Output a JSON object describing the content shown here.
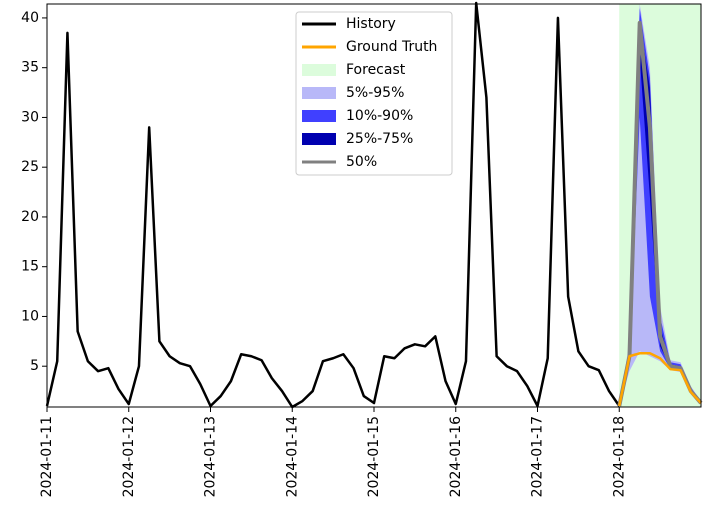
{
  "chart_data": {
    "type": "line",
    "xlim": [
      0,
      192
    ],
    "ylim": [
      0.9,
      41.4
    ],
    "xticks": [
      {
        "value": 0,
        "label": "2024-01-11"
      },
      {
        "value": 24,
        "label": "2024-01-12"
      },
      {
        "value": 48,
        "label": "2024-01-13"
      },
      {
        "value": 72,
        "label": "2024-01-14"
      },
      {
        "value": 96,
        "label": "2024-01-15"
      },
      {
        "value": 120,
        "label": "2024-01-16"
      },
      {
        "value": 144,
        "label": "2024-01-17"
      },
      {
        "value": 168,
        "label": "2024-01-18"
      }
    ],
    "yticks": [
      5,
      10,
      15,
      20,
      25,
      30,
      35,
      40
    ],
    "forecast_region": {
      "name": "Forecast",
      "color": "#dcfcdc",
      "xrange": [
        168,
        192
      ]
    },
    "bands": [
      {
        "name": "5%-95%",
        "color": "#b8b8f8",
        "x": [
          168,
          171,
          174,
          177,
          180,
          183,
          186,
          189,
          192
        ],
        "lower": [
          1.0,
          4.5,
          6.5,
          6,
          5.5,
          4.6,
          4.4,
          2.2,
          1.2
        ],
        "upper": [
          1.0,
          7.5,
          41.4,
          35,
          11,
          5.6,
          5.4,
          3.0,
          1.5
        ]
      },
      {
        "name": "10%-90%",
        "color": "#4040ff",
        "x": [
          168,
          171,
          174,
          177,
          180,
          183,
          186,
          189,
          192
        ],
        "lower": [
          1.0,
          5.2,
          30,
          12,
          6.5,
          4.7,
          4.5,
          2.3,
          1.2
        ],
        "upper": [
          1.0,
          7,
          41,
          34,
          10,
          5.4,
          5.2,
          2.9,
          1.4
        ]
      },
      {
        "name": "25%-75%",
        "color": "#0000b0",
        "x": [
          168,
          171,
          174,
          177,
          180,
          183,
          186,
          189,
          192
        ],
        "lower": [
          1.0,
          5.5,
          36,
          22,
          7,
          4.9,
          4.6,
          2.4,
          1.3
        ],
        "upper": [
          1.0,
          6.5,
          39.8,
          33,
          9,
          5.2,
          5.0,
          2.7,
          1.3
        ]
      }
    ],
    "series": [
      {
        "name": "History",
        "color": "#000000",
        "width": 2.5,
        "x": [
          0,
          3,
          6,
          9,
          12,
          15,
          18,
          21,
          24,
          27,
          30,
          33,
          36,
          39,
          42,
          45,
          48,
          51,
          54,
          57,
          60,
          63,
          66,
          69,
          72,
          75,
          78,
          81,
          84,
          87,
          90,
          93,
          96,
          99,
          102,
          105,
          108,
          111,
          114,
          117,
          120,
          123,
          126,
          129,
          132,
          135,
          138,
          141,
          144,
          147,
          150,
          153,
          156,
          159,
          162,
          165,
          168
        ],
        "values": [
          1.0,
          5.5,
          38.5,
          8.5,
          5.5,
          4.5,
          4.8,
          2.7,
          1.2,
          5,
          29,
          7.5,
          6,
          5.3,
          5,
          3.2,
          1.0,
          2.0,
          3.5,
          6.2,
          6,
          5.6,
          3.8,
          2.5,
          0.9,
          1.5,
          2.5,
          5.5,
          5.8,
          6.2,
          4.8,
          2,
          1.3,
          6,
          5.8,
          6.8,
          7.2,
          7,
          8,
          3.5,
          1.2,
          5.5,
          41.5,
          32,
          6,
          5,
          4.5,
          3,
          1.0,
          5.8,
          40,
          12,
          6.5,
          5,
          4.6,
          2.5,
          1.0
        ]
      },
      {
        "name": "Ground Truth",
        "color": "#ffa500",
        "width": 2.5,
        "x": [
          168,
          171,
          174,
          177,
          180,
          183,
          186,
          189,
          192
        ],
        "values": [
          1.0,
          6.0,
          6.3,
          6.3,
          5.8,
          4.7,
          4.6,
          2.4,
          1.3
        ]
      },
      {
        "name": "50%",
        "color": "#808080",
        "width": 4,
        "x": [
          168,
          171,
          174,
          177,
          180,
          183,
          186,
          189,
          192
        ],
        "values": [
          1.0,
          6.0,
          39.5,
          29,
          8,
          5,
          4.8,
          2.5,
          1.3
        ]
      }
    ]
  }
}
